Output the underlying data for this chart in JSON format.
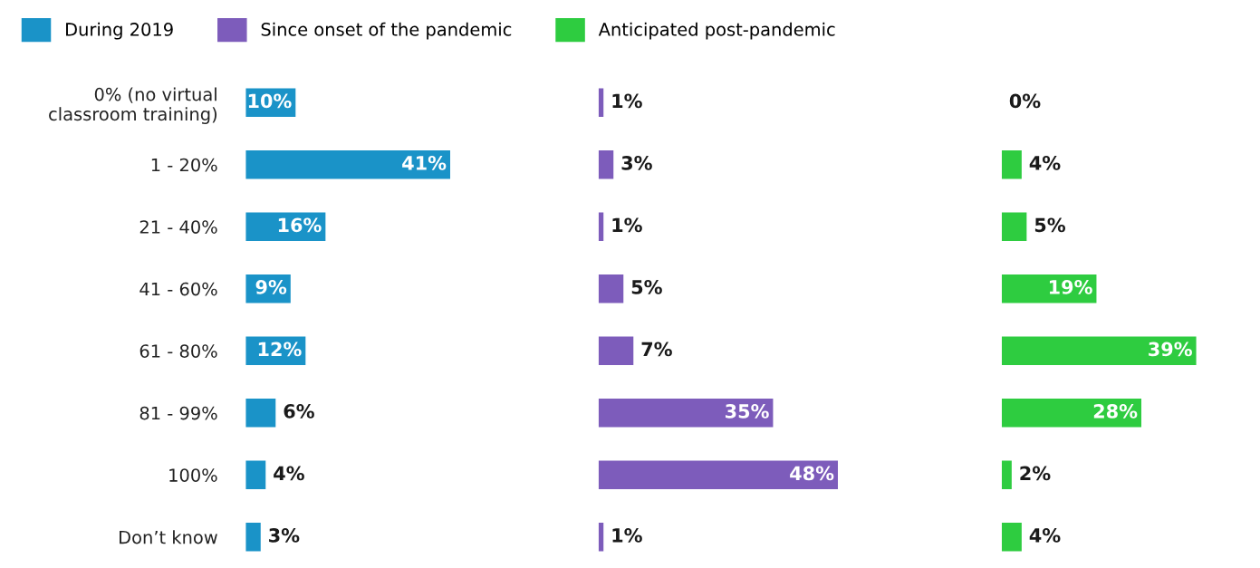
{
  "chart_data": [
    {
      "type": "bar",
      "orientation": "horizontal",
      "data_labels": true,
      "tick_labels": "y",
      "legend": "top",
      "categories": [
        "0% (no virtual\nclassroom training)",
        "1 - 20%",
        "21 - 40%",
        "41 - 60%",
        "61 - 80%",
        "81 - 99%",
        "100%",
        "Don’t know"
      ],
      "series": [
        {
          "name": "During 2019",
          "color": "#1a93c8",
          "values": [
            10,
            41,
            16,
            9,
            12,
            6,
            4,
            3
          ],
          "value_labels": [
            "10%",
            "41%",
            "16%",
            "9%",
            "12%",
            "6%",
            "4%",
            "3%"
          ]
        }
      ]
    },
    {
      "type": "bar",
      "orientation": "horizontal",
      "data_labels": true,
      "tick_labels": false,
      "legend": "top",
      "categories": [
        null,
        null,
        null,
        null,
        null,
        null,
        null,
        null
      ],
      "series": [
        {
          "name": "Since onset of the pandemic",
          "color": "#7d5cbb",
          "values": [
            1,
            3,
            1,
            5,
            7,
            35,
            48,
            1
          ],
          "value_labels": [
            "1%",
            "3%",
            "1%",
            "5%",
            "7%",
            "35%",
            "48%",
            "1%"
          ]
        }
      ]
    },
    {
      "type": "bar",
      "orientation": "horizontal",
      "data_labels": true,
      "tick_labels": false,
      "legend": "top",
      "categories": [
        null,
        null,
        null,
        null,
        null,
        null,
        null,
        null
      ],
      "series": [
        {
          "name": "Anticipated post-pandemic",
          "color": "#2ecc40",
          "values": [
            0,
            4,
            5,
            19,
            39,
            28,
            2,
            4
          ],
          "value_labels": [
            "0%",
            "4%",
            "5%",
            "19%",
            "39%",
            "28%",
            "2%",
            "4%"
          ]
        }
      ]
    }
  ]
}
